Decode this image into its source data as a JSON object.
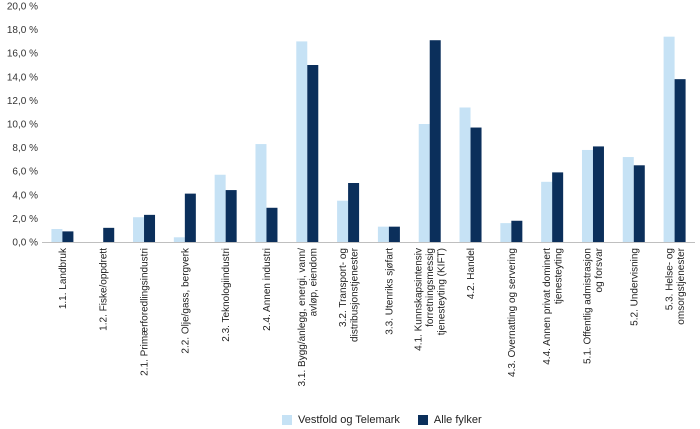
{
  "chart_data": {
    "type": "bar",
    "title": "",
    "xlabel": "",
    "ylabel": "",
    "ylim": [
      0,
      20
    ],
    "yticks": [
      "0,0 %",
      "2,0 %",
      "4,0 %",
      "6,0 %",
      "8,0 %",
      "10,0 %",
      "12,0 %",
      "14,0 %",
      "16,0 %",
      "18,0 %",
      "20,0 %"
    ],
    "grid": false,
    "legend_position": "bottom",
    "categories": [
      [
        "1.1. Landbruk"
      ],
      [
        "1.2. Fiske/oppdrett"
      ],
      [
        "2.1. Primærforedlingsindustri"
      ],
      [
        "2.2. Olje/gass, bergverk"
      ],
      [
        "2.3. Teknologiindustri"
      ],
      [
        "2.4. Annen industri"
      ],
      [
        "3.1. Bygg/anlegg, energi, vann/",
        "avløp, eiendom"
      ],
      [
        "3.2. Transport- og",
        "distribusjonstjenester"
      ],
      [
        "3.3. Utenriks sjøfart"
      ],
      [
        "4.1. Kunnskapsintensiv",
        "forretningsmessig",
        "tjenesteyting (KIFT)"
      ],
      [
        "4.2. Handel"
      ],
      [
        "4.3. Overnatting og servering"
      ],
      [
        "4.4. Annen privat dominert",
        "tjenesteyting"
      ],
      [
        "5.1. Offentlig admistrasjon",
        "og forsvar"
      ],
      [
        "5.2. Undervisning"
      ],
      [
        "5.3. Helse- og",
        "omsorgstjenester"
      ]
    ],
    "series": [
      {
        "name": "Vestfold og Telemark",
        "color": "#c6e2f5",
        "values": [
          1.1,
          0.0,
          2.1,
          0.4,
          5.7,
          8.3,
          17.0,
          3.5,
          1.3,
          10.0,
          11.4,
          1.6,
          5.1,
          7.8,
          7.2,
          17.4
        ]
      },
      {
        "name": "Alle fylker",
        "color": "#0b2f5b",
        "values": [
          0.9,
          1.2,
          2.3,
          4.1,
          4.4,
          2.9,
          15.0,
          5.0,
          1.3,
          17.1,
          9.7,
          1.8,
          5.9,
          8.1,
          6.5,
          13.8
        ]
      }
    ]
  }
}
